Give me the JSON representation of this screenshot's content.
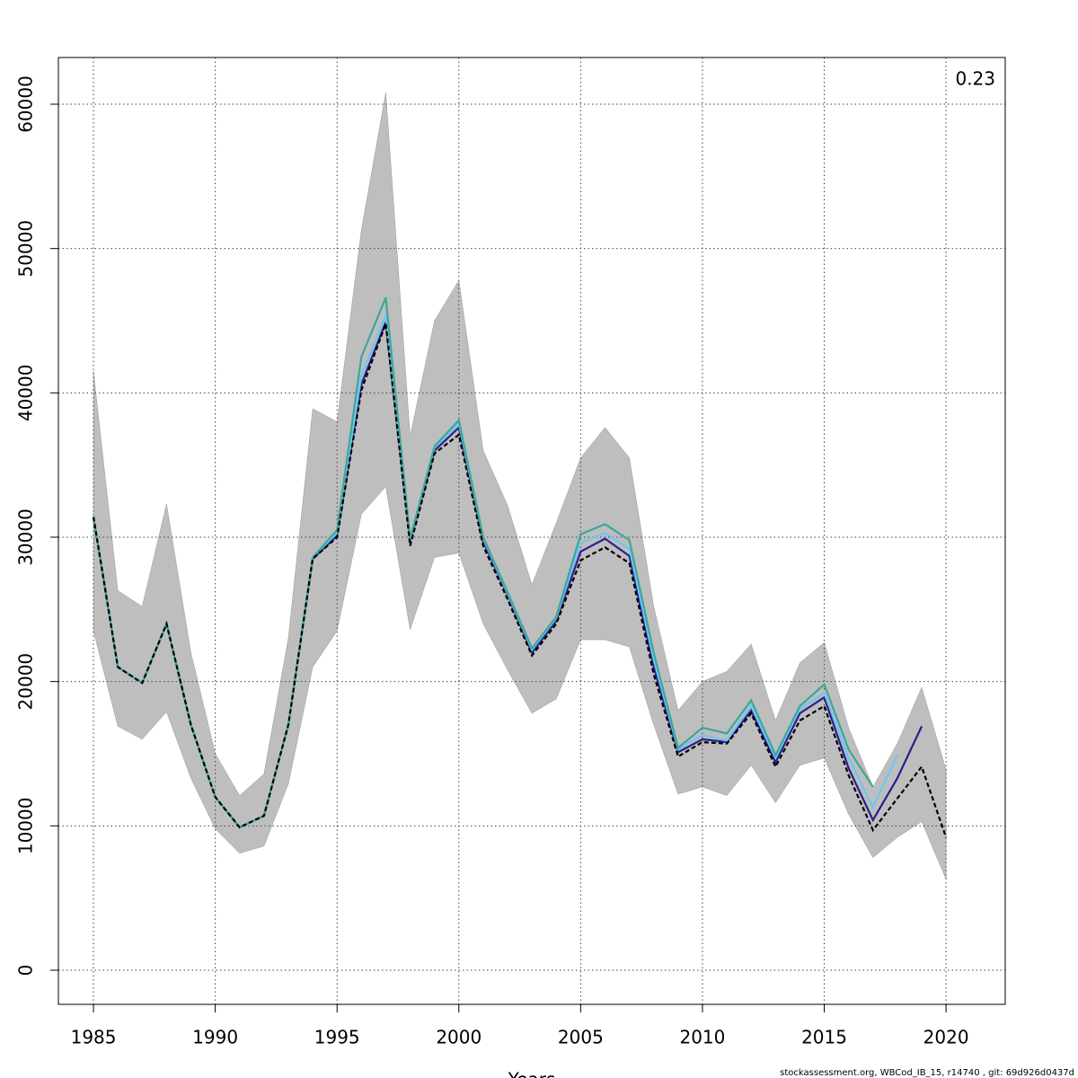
{
  "chart_data": {
    "type": "line",
    "x_label": "Years",
    "annotation": "0.23",
    "footer": "stockassessment.org, WBCod_IB_15, r14740 , git: 69d926d0437d",
    "x": [
      1985,
      1986,
      1987,
      1988,
      1989,
      1990,
      1991,
      1992,
      1993,
      1994,
      1995,
      1996,
      1997,
      1998,
      1999,
      2000,
      2001,
      2002,
      2003,
      2004,
      2005,
      2006,
      2007,
      2008,
      2009,
      2010,
      2011,
      2012,
      2013,
      2014,
      2015,
      2016,
      2017,
      2018,
      2019,
      2020
    ],
    "band": {
      "color": "#bebebe",
      "upper": [
        41500,
        26300,
        25200,
        32300,
        22000,
        15000,
        12100,
        13600,
        23000,
        38900,
        38000,
        51300,
        60800,
        37000,
        45000,
        47800,
        36000,
        32200,
        26700,
        31000,
        35500,
        37600,
        35500,
        25200,
        18000,
        20000,
        20700,
        22600,
        17300,
        21300,
        22700,
        16800,
        12700,
        15700,
        19600,
        13900
      ],
      "lower": [
        23500,
        16900,
        16000,
        17900,
        13300,
        9800,
        8100,
        8600,
        12900,
        21000,
        23500,
        31600,
        33500,
        23600,
        28600,
        28900,
        24000,
        20800,
        17800,
        18800,
        22900,
        22900,
        22400,
        17000,
        12200,
        12700,
        12100,
        14200,
        11600,
        14200,
        14700,
        10800,
        7800,
        9200,
        10300,
        6300
      ]
    },
    "series": [
      {
        "color": "#2c1d8f",
        "values": [
          31400,
          21000,
          19900,
          24000,
          17000,
          12000,
          9900,
          10700,
          17000,
          28500,
          30100,
          40600,
          44900,
          29700,
          36000,
          37600,
          29700,
          26000,
          22000,
          24200,
          29000,
          29900,
          28700,
          21000,
          15100,
          16000,
          15800,
          18000,
          14400,
          17800,
          18900,
          14000,
          10400,
          13300,
          16900,
          null
        ]
      },
      {
        "color": "#6ec6f0",
        "values": [
          31400,
          21000,
          19900,
          24000,
          17000,
          12000,
          9900,
          10700,
          17000,
          28600,
          30300,
          41200,
          45400,
          29800,
          36200,
          37900,
          29900,
          26100,
          22200,
          24400,
          29600,
          30300,
          29200,
          21500,
          15300,
          16300,
          15900,
          18300,
          14700,
          18100,
          19200,
          14700,
          11300,
          14900,
          null,
          null
        ]
      },
      {
        "color": "#3aa89a",
        "values": [
          31400,
          21000,
          19900,
          24000,
          17000,
          12000,
          9900,
          10700,
          17000,
          28600,
          30500,
          42500,
          46600,
          29900,
          36300,
          38100,
          30000,
          26200,
          22300,
          24500,
          30200,
          30900,
          29800,
          22000,
          15400,
          16800,
          16400,
          18700,
          14900,
          18300,
          19800,
          15300,
          12700,
          null,
          null,
          null
        ]
      },
      {
        "color": "#000000",
        "linestyle": "dashed",
        "values": [
          31400,
          21000,
          19900,
          24000,
          17000,
          12000,
          9900,
          10700,
          17000,
          28500,
          30000,
          40200,
          44800,
          29400,
          35800,
          37100,
          29400,
          25700,
          21800,
          24000,
          28400,
          29300,
          28200,
          20500,
          14800,
          15800,
          15700,
          17800,
          14100,
          17300,
          18300,
          13500,
          9700,
          11900,
          14100,
          9200
        ]
      }
    ],
    "xlim": [
      1983.56,
      2022.43
    ],
    "ylim": [
      -2365,
      63236
    ],
    "xticks": [
      1985,
      1990,
      1995,
      2000,
      2005,
      2010,
      2015,
      2020
    ],
    "yticks": [
      0,
      10000,
      20000,
      30000,
      40000,
      50000,
      60000
    ],
    "grid": true
  }
}
